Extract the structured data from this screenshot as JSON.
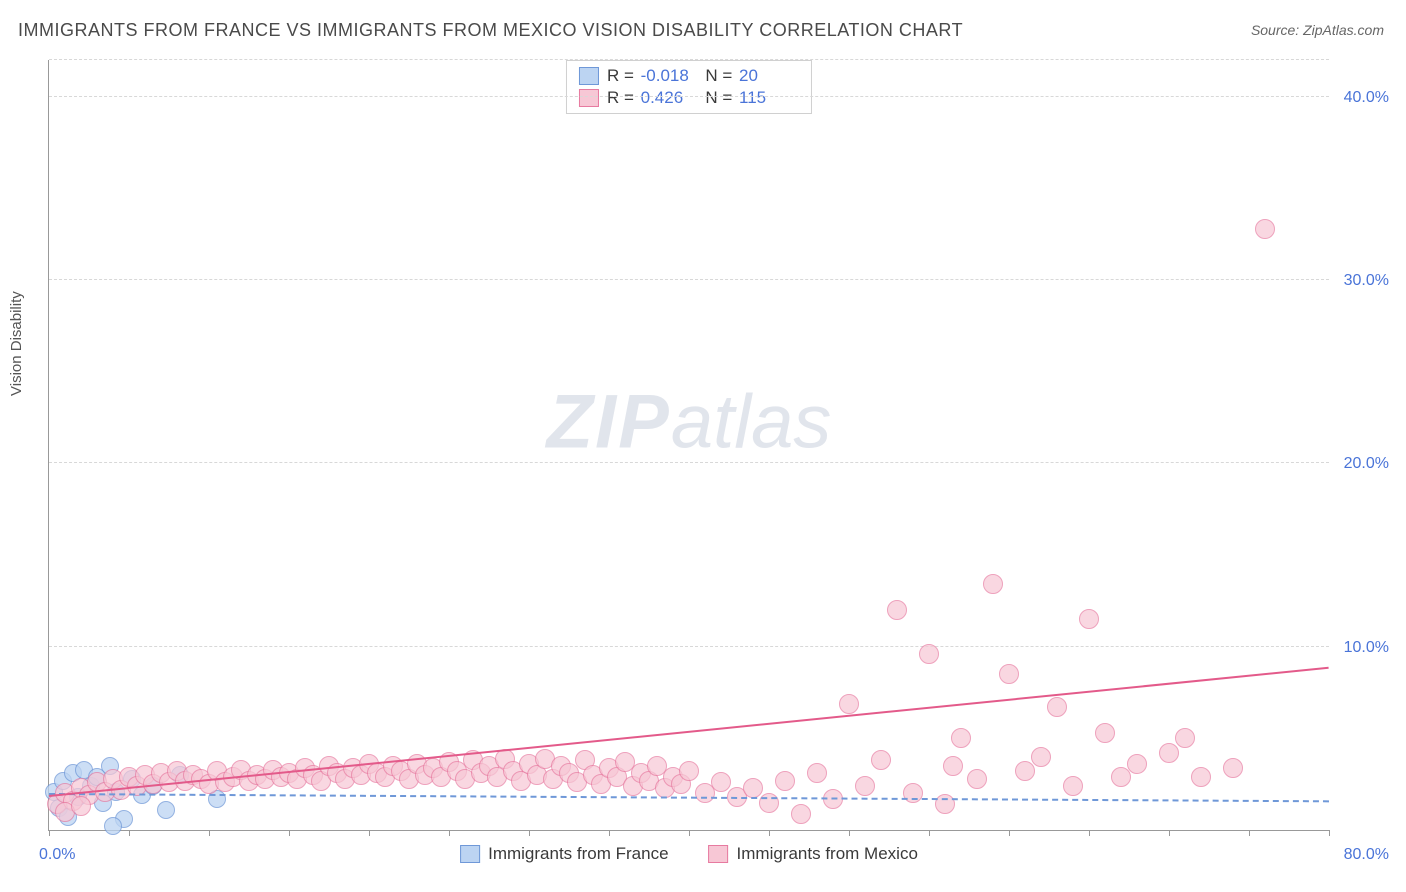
{
  "title": "IMMIGRANTS FROM FRANCE VS IMMIGRANTS FROM MEXICO VISION DISABILITY CORRELATION CHART",
  "source_label": "Source: ZipAtlas.com",
  "y_axis_label": "Vision Disability",
  "watermark": {
    "bold": "ZIP",
    "rest": "atlas"
  },
  "chart": {
    "type": "scatter",
    "background_color": "#ffffff",
    "grid_color": "#d8d8d8",
    "axis_color": "#999999",
    "x": {
      "min": 0,
      "max": 80,
      "ticks_pct": [
        0,
        6.25,
        12.5,
        18.75,
        25,
        31.25,
        37.5,
        43.75,
        50,
        56.25,
        62.5,
        68.75,
        75,
        81.25,
        87.5,
        93.75,
        100
      ],
      "label_0": "0.0%",
      "label_max": "80.0%"
    },
    "y": {
      "min": 0,
      "max": 42,
      "grid_values": [
        10,
        20,
        30,
        40
      ],
      "labels": [
        "10.0%",
        "20.0%",
        "30.0%",
        "40.0%"
      ]
    },
    "series": [
      {
        "id": "france",
        "name": "Immigrants from France",
        "marker_color_fill": "#bcd4f2",
        "marker_color_stroke": "#6f98d8",
        "marker_opacity": 0.75,
        "marker_radius": 9,
        "trend": {
          "style": "dashed",
          "color": "#6f98d8",
          "y_at_x0": 1.9,
          "y_at_xmax": 1.5
        },
        "r_label": "-0.018",
        "n_label": "20",
        "points": [
          [
            0.3,
            2.1
          ],
          [
            0.6,
            1.2
          ],
          [
            0.9,
            2.7
          ],
          [
            1.2,
            0.7
          ],
          [
            1.5,
            3.1
          ],
          [
            1.8,
            1.8
          ],
          [
            2.2,
            3.3
          ],
          [
            2.6,
            2.4
          ],
          [
            3.0,
            2.9
          ],
          [
            3.4,
            1.5
          ],
          [
            3.8,
            3.5
          ],
          [
            4.2,
            2.1
          ],
          [
            4.7,
            0.6
          ],
          [
            5.2,
            2.8
          ],
          [
            5.8,
            1.9
          ],
          [
            6.5,
            2.4
          ],
          [
            7.3,
            1.1
          ],
          [
            8.2,
            3.0
          ],
          [
            10.5,
            1.7
          ],
          [
            4.0,
            0.2
          ]
        ]
      },
      {
        "id": "mexico",
        "name": "Immigrants from Mexico",
        "marker_color_fill": "#f7c7d5",
        "marker_color_stroke": "#e77aa0",
        "marker_opacity": 0.7,
        "marker_radius": 10,
        "trend": {
          "style": "solid",
          "color": "#e35a8a",
          "y_at_x0": 1.8,
          "y_at_xmax": 8.8
        },
        "r_label": "0.426",
        "n_label": "115",
        "points": [
          [
            0.5,
            1.4
          ],
          [
            1.0,
            2.0
          ],
          [
            1.5,
            1.6
          ],
          [
            2.0,
            2.3
          ],
          [
            2.5,
            1.9
          ],
          [
            3.0,
            2.6
          ],
          [
            3.5,
            2.1
          ],
          [
            4.0,
            2.8
          ],
          [
            4.5,
            2.2
          ],
          [
            5.0,
            2.9
          ],
          [
            5.5,
            2.4
          ],
          [
            6.0,
            3.0
          ],
          [
            6.5,
            2.5
          ],
          [
            7.0,
            3.1
          ],
          [
            7.5,
            2.6
          ],
          [
            8.0,
            3.2
          ],
          [
            8.5,
            2.7
          ],
          [
            9.0,
            3.0
          ],
          [
            9.5,
            2.8
          ],
          [
            10,
            2.5
          ],
          [
            10.5,
            3.2
          ],
          [
            11,
            2.6
          ],
          [
            11.5,
            2.9
          ],
          [
            12,
            3.3
          ],
          [
            12.5,
            2.7
          ],
          [
            13,
            3.0
          ],
          [
            13.5,
            2.8
          ],
          [
            14,
            3.3
          ],
          [
            14.5,
            2.9
          ],
          [
            15,
            3.1
          ],
          [
            15.5,
            2.8
          ],
          [
            16,
            3.4
          ],
          [
            16.5,
            3.0
          ],
          [
            17,
            2.7
          ],
          [
            17.5,
            3.5
          ],
          [
            18,
            3.1
          ],
          [
            18.5,
            2.8
          ],
          [
            19,
            3.4
          ],
          [
            19.5,
            3.0
          ],
          [
            20,
            3.6
          ],
          [
            20.5,
            3.1
          ],
          [
            21,
            2.9
          ],
          [
            21.5,
            3.5
          ],
          [
            22,
            3.2
          ],
          [
            22.5,
            2.8
          ],
          [
            23,
            3.6
          ],
          [
            23.5,
            3.0
          ],
          [
            24,
            3.4
          ],
          [
            24.5,
            2.9
          ],
          [
            25,
            3.7
          ],
          [
            25.5,
            3.2
          ],
          [
            26,
            2.8
          ],
          [
            26.5,
            3.8
          ],
          [
            27,
            3.1
          ],
          [
            27.5,
            3.5
          ],
          [
            28,
            2.9
          ],
          [
            28.5,
            3.9
          ],
          [
            29,
            3.2
          ],
          [
            29.5,
            2.7
          ],
          [
            30,
            3.6
          ],
          [
            30.5,
            3.0
          ],
          [
            31,
            3.9
          ],
          [
            31.5,
            2.8
          ],
          [
            32,
            3.5
          ],
          [
            32.5,
            3.1
          ],
          [
            33,
            2.6
          ],
          [
            33.5,
            3.8
          ],
          [
            34,
            3.0
          ],
          [
            34.5,
            2.5
          ],
          [
            35,
            3.4
          ],
          [
            35.5,
            2.9
          ],
          [
            36,
            3.7
          ],
          [
            36.5,
            2.4
          ],
          [
            37,
            3.1
          ],
          [
            37.5,
            2.7
          ],
          [
            38,
            3.5
          ],
          [
            38.5,
            2.3
          ],
          [
            39,
            2.9
          ],
          [
            39.5,
            2.5
          ],
          [
            40,
            3.2
          ],
          [
            41,
            2.0
          ],
          [
            42,
            2.6
          ],
          [
            43,
            1.8
          ],
          [
            44,
            2.3
          ],
          [
            45,
            1.5
          ],
          [
            46,
            2.7
          ],
          [
            47,
            0.9
          ],
          [
            48,
            3.1
          ],
          [
            49,
            1.7
          ],
          [
            50,
            6.9
          ],
          [
            51,
            2.4
          ],
          [
            52,
            3.8
          ],
          [
            53,
            12.0
          ],
          [
            54,
            2.0
          ],
          [
            55,
            9.6
          ],
          [
            56,
            1.4
          ],
          [
            56.5,
            3.5
          ],
          [
            57,
            5.0
          ],
          [
            58,
            2.8
          ],
          [
            59,
            13.4
          ],
          [
            60,
            8.5
          ],
          [
            61,
            3.2
          ],
          [
            62,
            4.0
          ],
          [
            63,
            6.7
          ],
          [
            64,
            2.4
          ],
          [
            65,
            11.5
          ],
          [
            66,
            5.3
          ],
          [
            67,
            2.9
          ],
          [
            68,
            3.6
          ],
          [
            70,
            4.2
          ],
          [
            71,
            5.0
          ],
          [
            72,
            2.9
          ],
          [
            74,
            3.4
          ],
          [
            76,
            32.8
          ],
          [
            1,
            1.0
          ],
          [
            2,
            1.3
          ]
        ]
      }
    ]
  },
  "legend_top": {
    "r_prefix": "R",
    "n_prefix": "N",
    "eq": " = "
  },
  "legend_bottom": {
    "items": [
      "Immigrants from France",
      "Immigrants from Mexico"
    ]
  }
}
